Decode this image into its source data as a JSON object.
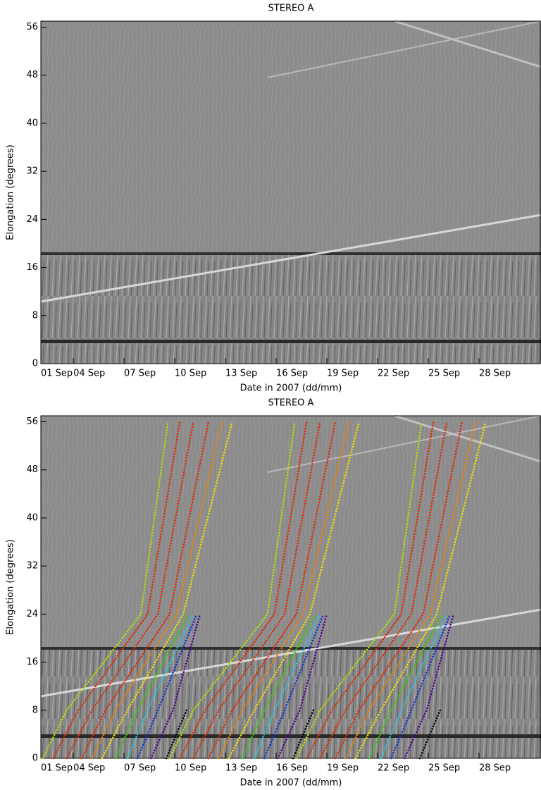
{
  "chart_data": [
    {
      "type": "image",
      "title": "STEREO A",
      "xlabel": "Date in 2007 (dd/mm)",
      "ylabel": "Elongation (degrees)",
      "xlim": [
        2.08,
        31.67
      ],
      "ylim": [
        0,
        57
      ],
      "xticks": [
        {
          "value": 1,
          "label": "01 Sep"
        },
        {
          "value": 4,
          "label": "04 Sep"
        },
        {
          "value": 7,
          "label": "07 Sep"
        },
        {
          "value": 10,
          "label": "10 Sep"
        },
        {
          "value": 13,
          "label": "13 Sep"
        },
        {
          "value": 16,
          "label": "16 Sep"
        },
        {
          "value": 19,
          "label": "19 Sep"
        },
        {
          "value": 22,
          "label": "22 Sep"
        },
        {
          "value": 25,
          "label": "25 Sep"
        },
        {
          "value": 28,
          "label": "28 Sep"
        }
      ],
      "yticks": [
        0,
        8,
        16,
        24,
        32,
        40,
        48,
        56
      ]
    },
    {
      "type": "line",
      "title": "STEREO A",
      "xlabel": "Date in 2007 (dd/mm)",
      "ylabel": "Elongation (degrees)",
      "xlim": [
        2.08,
        31.67
      ],
      "ylim": [
        0,
        57
      ],
      "xticks": [
        {
          "value": 1,
          "label": "01 Sep"
        },
        {
          "value": 4,
          "label": "04 Sep"
        },
        {
          "value": 7,
          "label": "07 Sep"
        },
        {
          "value": 10,
          "label": "10 Sep"
        },
        {
          "value": 13,
          "label": "13 Sep"
        },
        {
          "value": 16,
          "label": "16 Sep"
        },
        {
          "value": 19,
          "label": "19 Sep"
        },
        {
          "value": 22,
          "label": "22 Sep"
        },
        {
          "value": 25,
          "label": "25 Sep"
        },
        {
          "value": 28,
          "label": "28 Sep"
        }
      ],
      "yticks": [
        0,
        8,
        16,
        24,
        32,
        40,
        48,
        56
      ],
      "series": [
        {
          "color": "#b4e000",
          "x": [
            2.2,
            3.6,
            8.0,
            9.6
          ],
          "values": [
            0,
            8,
            24,
            56
          ]
        },
        {
          "color": "#e02800",
          "x": [
            2.8,
            4.3,
            8.4,
            10.3
          ],
          "values": [
            0,
            8,
            24,
            56
          ]
        },
        {
          "color": "#e02800",
          "x": [
            3.6,
            5.1,
            9.0,
            11.1
          ],
          "values": [
            0,
            8,
            24,
            56
          ]
        },
        {
          "color": "#e02800",
          "x": [
            4.5,
            5.9,
            9.7,
            12.0
          ],
          "values": [
            0,
            8,
            24,
            56
          ]
        },
        {
          "color": "#f08000",
          "x": [
            5.1,
            6.5,
            10.1,
            12.8
          ],
          "values": [
            0,
            8,
            24,
            56
          ]
        },
        {
          "color": "#f0e000",
          "x": [
            5.7,
            7.2,
            10.5,
            13.4
          ],
          "values": [
            0,
            8,
            24,
            56
          ]
        },
        {
          "color": "#30d000",
          "x": [
            6.5,
            7.8,
            10.8,
            null
          ],
          "values": [
            0,
            8,
            24,
            null
          ]
        },
        {
          "color": "#20c8e8",
          "x": [
            7.2,
            8.4,
            11.1,
            null
          ],
          "values": [
            0,
            8,
            24,
            null
          ]
        },
        {
          "color": "#1030e0",
          "x": [
            7.8,
            9.0,
            11.3,
            null
          ],
          "values": [
            0,
            8,
            24,
            null
          ]
        },
        {
          "color": "#500090",
          "x": [
            8.6,
            9.9,
            11.5,
            null
          ],
          "values": [
            0,
            8,
            24,
            null
          ]
        },
        {
          "color": "#000000",
          "x": [
            9.5,
            10.7,
            null,
            null
          ],
          "values": [
            0,
            8,
            null,
            null
          ]
        },
        {
          "color": "#b4e000",
          "x": [
            9.7,
            11.1,
            15.5,
            17.1
          ],
          "values": [
            0,
            8,
            24,
            56
          ]
        },
        {
          "color": "#e02800",
          "x": [
            10.3,
            11.8,
            15.9,
            17.8
          ],
          "values": [
            0,
            8,
            24,
            56
          ]
        },
        {
          "color": "#e02800",
          "x": [
            11.1,
            12.6,
            16.5,
            18.6
          ],
          "values": [
            0,
            8,
            24,
            56
          ]
        },
        {
          "color": "#e02800",
          "x": [
            12.0,
            13.4,
            17.2,
            19.5
          ],
          "values": [
            0,
            8,
            24,
            56
          ]
        },
        {
          "color": "#f08000",
          "x": [
            12.6,
            14.0,
            17.6,
            20.3
          ],
          "values": [
            0,
            8,
            24,
            56
          ]
        },
        {
          "color": "#f0e000",
          "x": [
            13.2,
            14.7,
            18.0,
            20.9
          ],
          "values": [
            0,
            8,
            24,
            56
          ]
        },
        {
          "color": "#30d000",
          "x": [
            14.0,
            15.3,
            18.3,
            null
          ],
          "values": [
            0,
            8,
            24,
            null
          ]
        },
        {
          "color": "#20c8e8",
          "x": [
            14.7,
            15.9,
            18.6,
            null
          ],
          "values": [
            0,
            8,
            24,
            null
          ]
        },
        {
          "color": "#1030e0",
          "x": [
            15.3,
            16.5,
            18.8,
            null
          ],
          "values": [
            0,
            8,
            24,
            null
          ]
        },
        {
          "color": "#500090",
          "x": [
            16.1,
            17.4,
            19.0,
            null
          ],
          "values": [
            0,
            8,
            24,
            null
          ]
        },
        {
          "color": "#000000",
          "x": [
            17.0,
            18.2,
            null,
            null
          ],
          "values": [
            0,
            8,
            null,
            null
          ]
        },
        {
          "color": "#b4e000",
          "x": [
            17.2,
            18.6,
            23.0,
            24.6
          ],
          "values": [
            0,
            8,
            24,
            56
          ]
        },
        {
          "color": "#e02800",
          "x": [
            17.8,
            19.3,
            23.4,
            25.3
          ],
          "values": [
            0,
            8,
            24,
            56
          ]
        },
        {
          "color": "#e02800",
          "x": [
            18.6,
            20.1,
            24.0,
            26.1
          ],
          "values": [
            0,
            8,
            24,
            56
          ]
        },
        {
          "color": "#e02800",
          "x": [
            19.5,
            20.9,
            24.7,
            27.0
          ],
          "values": [
            0,
            8,
            24,
            56
          ]
        },
        {
          "color": "#f08000",
          "x": [
            20.1,
            21.5,
            25.1,
            27.8
          ],
          "values": [
            0,
            8,
            24,
            56
          ]
        },
        {
          "color": "#f0e000",
          "x": [
            20.7,
            22.2,
            25.5,
            28.4
          ],
          "values": [
            0,
            8,
            24,
            56
          ]
        },
        {
          "color": "#30d000",
          "x": [
            21.5,
            22.8,
            25.8,
            null
          ],
          "values": [
            0,
            8,
            24,
            null
          ]
        },
        {
          "color": "#20c8e8",
          "x": [
            22.2,
            23.4,
            26.1,
            null
          ],
          "values": [
            0,
            8,
            24,
            null
          ]
        },
        {
          "color": "#1030e0",
          "x": [
            22.8,
            24.0,
            26.3,
            null
          ],
          "values": [
            0,
            8,
            24,
            null
          ]
        },
        {
          "color": "#500090",
          "x": [
            23.6,
            24.9,
            26.5,
            null
          ],
          "values": [
            0,
            8,
            24,
            null
          ]
        },
        {
          "color": "#000000",
          "x": [
            24.5,
            25.7,
            null,
            null
          ],
          "values": [
            0,
            8,
            null,
            null
          ]
        }
      ]
    }
  ]
}
